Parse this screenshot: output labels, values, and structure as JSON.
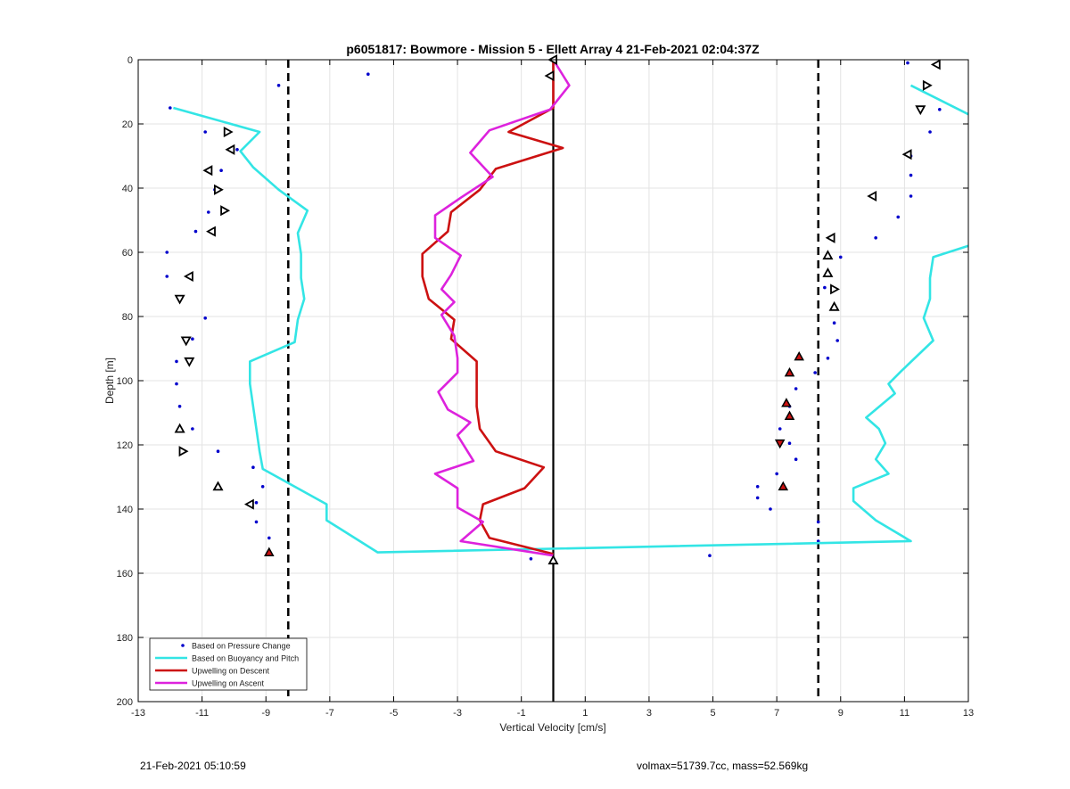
{
  "chart_data": {
    "type": "line",
    "title": "p6051817: Bowmore - Mission 5 - Ellett Array 4 21-Feb-2021 02:04:37Z",
    "xlabel": "Vertical Velocity [cm/s]",
    "ylabel": "Depth [m]",
    "xlim": [
      -13,
      13
    ],
    "ylim": [
      0,
      200
    ],
    "y_reversed": true,
    "grid": true,
    "xticks": [
      -13,
      -11,
      -9,
      -7,
      -5,
      -3,
      -1,
      1,
      3,
      5,
      7,
      9,
      11,
      13
    ],
    "yticks": [
      0,
      20,
      40,
      60,
      80,
      100,
      120,
      140,
      160,
      180,
      200
    ],
    "legend_position": "bottom-left",
    "reference_lines": {
      "solid_x": 0,
      "dashed_x": [
        -8.3,
        8.3
      ]
    },
    "series": [
      {
        "name": "Based on Pressure Change",
        "style": "points",
        "color": "#0000cc",
        "points": [
          [
            -5.8,
            4.5
          ],
          [
            -8.6,
            8
          ],
          [
            -12,
            15
          ],
          [
            -10.9,
            22.5
          ],
          [
            -9.9,
            28
          ],
          [
            -10.4,
            34.5
          ],
          [
            -10.6,
            40.5
          ],
          [
            -10.8,
            47.5
          ],
          [
            -11.2,
            53.5
          ],
          [
            -12.1,
            60
          ],
          [
            -12.1,
            67.5
          ],
          [
            -11.7,
            74.5
          ],
          [
            -10.9,
            80.5
          ],
          [
            -11.3,
            87
          ],
          [
            -11.8,
            94
          ],
          [
            -11.8,
            101
          ],
          [
            -11.7,
            108
          ],
          [
            -11.3,
            115
          ],
          [
            -10.5,
            122
          ],
          [
            -9.4,
            127
          ],
          [
            -9.1,
            133
          ],
          [
            -9.3,
            138
          ],
          [
            -9.3,
            144
          ],
          [
            -8.9,
            149
          ],
          [
            -8.9,
            153.5
          ],
          [
            -0.7,
            155.5
          ],
          [
            4.9,
            154.5
          ],
          [
            11.1,
            1
          ],
          [
            12.1,
            15.5
          ],
          [
            11.8,
            22.5
          ],
          [
            11.2,
            30
          ],
          [
            11.2,
            36
          ],
          [
            11.2,
            42.5
          ],
          [
            10.8,
            49
          ],
          [
            10.1,
            55.5
          ],
          [
            9.0,
            61.5
          ],
          [
            8.5,
            71
          ],
          [
            8.8,
            82
          ],
          [
            8.9,
            87.5
          ],
          [
            8.6,
            93
          ],
          [
            8.2,
            97.5
          ],
          [
            7.6,
            102.5
          ],
          [
            7.4,
            108
          ],
          [
            7.1,
            115
          ],
          [
            7.4,
            119.5
          ],
          [
            7.6,
            124.5
          ],
          [
            7.0,
            129
          ],
          [
            6.4,
            133
          ],
          [
            6.4,
            136.5
          ],
          [
            6.8,
            140
          ],
          [
            8.3,
            144
          ],
          [
            8.3,
            150
          ]
        ]
      },
      {
        "name": "Based on Buoyancy and Pitch",
        "style": "line",
        "color": "#33e5e5",
        "segments": [
          [
            [
              -11.9,
              15
            ],
            [
              -9.2,
              22.5
            ],
            [
              -9.8,
              28.5
            ],
            [
              -9.4,
              33.5
            ],
            [
              -8.6,
              40.5
            ],
            [
              -7.7,
              47
            ],
            [
              -8.0,
              54
            ],
            [
              -7.9,
              60.5
            ],
            [
              -7.9,
              68
            ],
            [
              -7.8,
              74.5
            ],
            [
              -8.0,
              81
            ],
            [
              -8.1,
              88
            ],
            [
              -9.5,
              94
            ],
            [
              -9.5,
              101
            ],
            [
              -9.4,
              108
            ],
            [
              -9.3,
              115
            ],
            [
              -9.2,
              122
            ],
            [
              -9.1,
              127.5
            ],
            [
              -7.1,
              138.5
            ],
            [
              -7.1,
              143.5
            ],
            [
              -5.5,
              153.5
            ],
            [
              11.2,
              150
            ],
            [
              10.1,
              143.5
            ],
            [
              9.4,
              137.5
            ],
            [
              9.4,
              133.5
            ],
            [
              10.5,
              129
            ],
            [
              10.1,
              124.5
            ],
            [
              10.4,
              119.5
            ],
            [
              10.2,
              115
            ],
            [
              9.8,
              111.5
            ],
            [
              10.7,
              104
            ],
            [
              10.5,
              101
            ],
            [
              10.9,
              97
            ],
            [
              11.9,
              87.5
            ],
            [
              11.6,
              80.5
            ],
            [
              11.8,
              74.5
            ],
            [
              11.8,
              68
            ],
            [
              11.9,
              61.5
            ],
            [
              13.0,
              58
            ]
          ],
          [
            [
              11.2,
              8
            ],
            [
              13.0,
              17
            ]
          ]
        ]
      },
      {
        "name": "Upwelling on Descent",
        "style": "line",
        "color": "#cc1111",
        "points": [
          [
            0,
            0
          ],
          [
            0,
            15
          ],
          [
            -1.4,
            22.5
          ],
          [
            0.3,
            27.5
          ],
          [
            -1.8,
            34
          ],
          [
            -2.3,
            40.5
          ],
          [
            -3.2,
            47.5
          ],
          [
            -3.3,
            53.5
          ],
          [
            -4.1,
            60.5
          ],
          [
            -4.1,
            67.5
          ],
          [
            -3.9,
            74.5
          ],
          [
            -3.1,
            81
          ],
          [
            -3.2,
            87
          ],
          [
            -2.4,
            94
          ],
          [
            -2.4,
            101.5
          ],
          [
            -2.4,
            108
          ],
          [
            -2.3,
            115
          ],
          [
            -1.8,
            122
          ],
          [
            -0.3,
            127
          ],
          [
            -0.9,
            133.5
          ],
          [
            -2.2,
            138.5
          ],
          [
            -2.3,
            143.5
          ],
          [
            -2.0,
            149
          ],
          [
            0,
            154
          ]
        ]
      },
      {
        "name": "Upwelling on Ascent",
        "style": "line",
        "color": "#dd22dd",
        "points": [
          [
            0,
            0
          ],
          [
            0.5,
            8
          ],
          [
            -0.1,
            15.5
          ],
          [
            -2.0,
            22
          ],
          [
            -2.6,
            29
          ],
          [
            -1.9,
            36.5
          ],
          [
            -2.9,
            43
          ],
          [
            -3.7,
            48.5
          ],
          [
            -3.7,
            55.5
          ],
          [
            -2.9,
            61
          ],
          [
            -3.2,
            67
          ],
          [
            -3.5,
            71.5
          ],
          [
            -3.1,
            75.5
          ],
          [
            -3.5,
            79.5
          ],
          [
            -3.1,
            86
          ],
          [
            -3.0,
            93
          ],
          [
            -3.0,
            97.5
          ],
          [
            -3.6,
            103.5
          ],
          [
            -3.3,
            109
          ],
          [
            -2.6,
            113
          ],
          [
            -3.0,
            117
          ],
          [
            -2.5,
            125
          ],
          [
            -3.7,
            129
          ],
          [
            -3.0,
            133.5
          ],
          [
            -3.0,
            139.5
          ],
          [
            -2.2,
            144
          ],
          [
            -2.9,
            150
          ],
          [
            0,
            154.5
          ]
        ]
      }
    ],
    "triangle_markers": [
      [
        0,
        0,
        "left"
      ],
      [
        -0.1,
        5,
        "left"
      ],
      [
        -10.2,
        22.5,
        "right"
      ],
      [
        -10.1,
        28,
        "left"
      ],
      [
        -10.8,
        34.5,
        "left"
      ],
      [
        -10.5,
        40.5,
        "right"
      ],
      [
        -10.3,
        47,
        "right"
      ],
      [
        -10.7,
        53.5,
        "left"
      ],
      [
        -11.4,
        67.5,
        "left"
      ],
      [
        -11.7,
        74.5,
        "down"
      ],
      [
        -11.5,
        87.5,
        "down"
      ],
      [
        -11.4,
        94,
        "down"
      ],
      [
        -11.7,
        115,
        "up"
      ],
      [
        -11.6,
        122,
        "right"
      ],
      [
        -10.5,
        133,
        "up"
      ],
      [
        -9.5,
        138.5,
        "left"
      ],
      [
        12.0,
        1.5,
        "left"
      ],
      [
        11.7,
        8,
        "right"
      ],
      [
        11.5,
        15.5,
        "down"
      ],
      [
        11.1,
        29.5,
        "left"
      ],
      [
        10.0,
        42.5,
        "left"
      ],
      [
        8.7,
        55.5,
        "left"
      ],
      [
        8.6,
        61,
        "up"
      ],
      [
        8.6,
        66.5,
        "up"
      ],
      [
        8.8,
        71.5,
        "right"
      ],
      [
        8.8,
        77,
        "up"
      ],
      [
        0,
        156,
        "up"
      ]
    ],
    "filled_markers": [
      [
        7.7,
        92.5,
        "up"
      ],
      [
        7.4,
        97.5,
        "up"
      ],
      [
        7.3,
        107,
        "up"
      ],
      [
        7.4,
        111,
        "up"
      ],
      [
        7.1,
        119.5,
        "down"
      ],
      [
        7.2,
        133,
        "up"
      ],
      [
        -8.9,
        153.5,
        "up"
      ]
    ]
  },
  "footer": {
    "left": "21-Feb-2021 05:10:59",
    "right": "volmax=51739.7cc, mass=52.569kg"
  }
}
